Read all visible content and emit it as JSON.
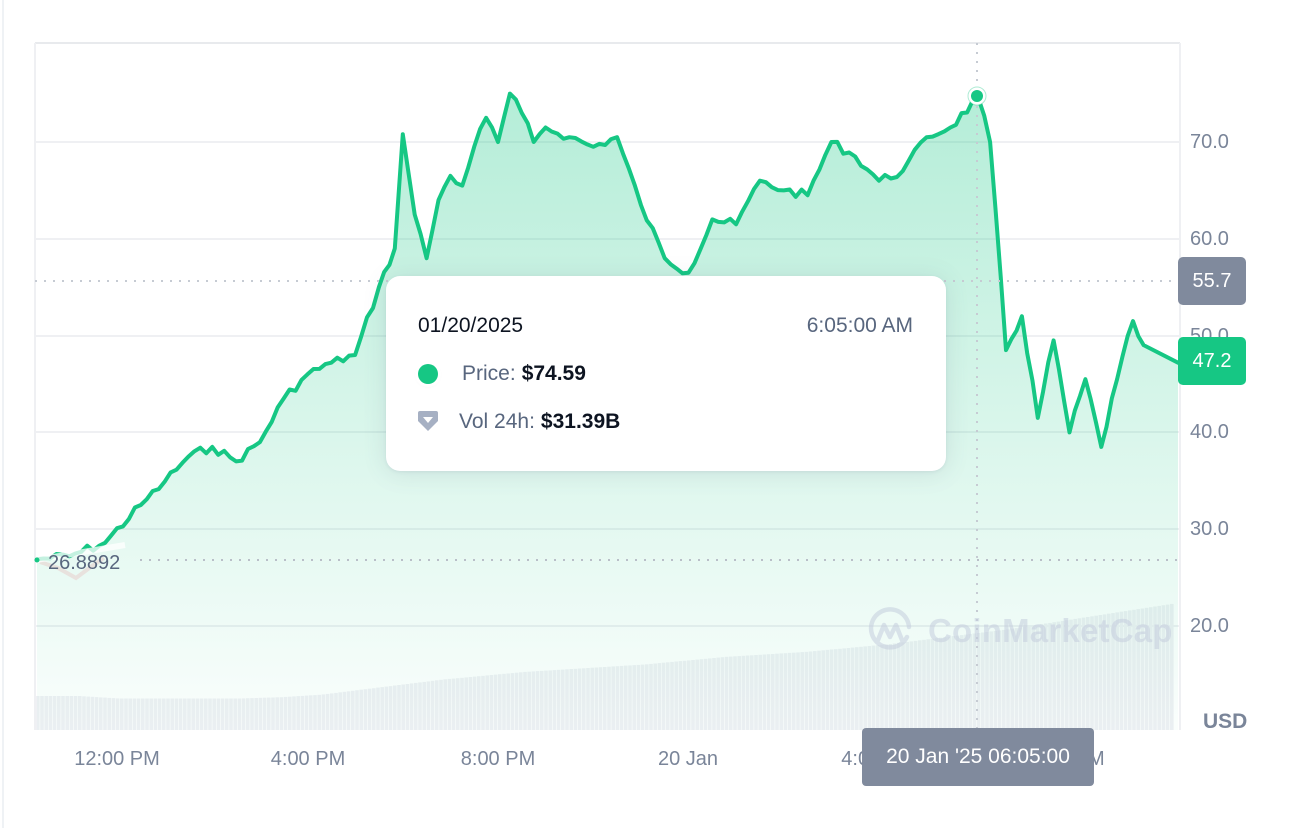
{
  "chart": {
    "watermark": "CoinMarketCap",
    "currency_label": "USD",
    "start_price_label": "26.8892",
    "crosshair_price_badge": "55.7",
    "last_price_badge": "47.2",
    "crosshair_time_badge": "20 Jan '25 06:05:00",
    "y_ticks": [
      "70.0",
      "60.0",
      "50.0",
      "40.0",
      "30.0",
      "20.0"
    ],
    "x_ticks": [
      "12:00 PM",
      "4:00 PM",
      "8:00 PM",
      "20 Jan",
      "4:00 AM",
      "8:00 AM"
    ],
    "colors": {
      "line": "#16c784",
      "below_start": "#ea3943",
      "badge_neutral": "#808a9d",
      "axis_text": "#7a8599",
      "volume": "#eff0f4"
    }
  },
  "tooltip": {
    "date": "01/20/2025",
    "time": "6:05:00 AM",
    "price_label": "Price:",
    "price_value": "$74.59",
    "volume_label": "Vol 24h:",
    "volume_value": "$31.39B"
  },
  "chart_data": {
    "type": "area",
    "title": "",
    "xlabel": "",
    "ylabel": "USD",
    "ylim": [
      10,
      78
    ],
    "grid": true,
    "legend": "none",
    "x_tick_labels": [
      "12:00 PM",
      "4:00 PM",
      "8:00 PM",
      "20 Jan",
      "4:00 AM",
      "8:00 AM"
    ],
    "y_tick_labels": [
      "20.0",
      "30.0",
      "40.0",
      "50.0",
      "60.0",
      "70.0"
    ],
    "annotations": {
      "start_price": 26.8892,
      "last_price": 47.2,
      "crosshair_price": 55.7,
      "crosshair_time": "20 Jan '25 06:05:00",
      "hovered_point": {
        "date": "01/20/2025",
        "time": "6:05:00 AM",
        "price": 74.59,
        "volume_24h": "$31.39B"
      }
    },
    "series": [
      {
        "name": "Price",
        "x": [
          "10:15 AM",
          "11:00 AM",
          "11:45 AM",
          "12:30 PM",
          "1:00 PM",
          "1:30 PM",
          "2:00 PM",
          "2:30 PM",
          "3:00 PM",
          "3:30 PM",
          "4:00 PM",
          "4:30 PM",
          "5:00 PM",
          "5:30 PM",
          "5:50 PM",
          "6:00 PM",
          "6:15 PM",
          "6:30 PM",
          "6:45 PM",
          "7:00 PM",
          "7:15 PM",
          "7:30 PM",
          "7:45 PM",
          "8:00 PM",
          "8:15 PM",
          "8:30 PM",
          "8:45 PM",
          "9:00 PM",
          "9:30 PM",
          "10:00 PM",
          "10:30 PM",
          "11:00 PM",
          "11:30 PM",
          "12:00 AM",
          "12:30 AM",
          "1:00 AM",
          "1:30 AM",
          "2:00 AM",
          "2:30 AM",
          "3:00 AM",
          "3:30 AM",
          "4:00 AM",
          "4:30 AM",
          "5:00 AM",
          "5:30 AM",
          "6:05 AM",
          "6:20 AM",
          "6:40 AM",
          "7:00 AM",
          "7:20 AM",
          "7:40 AM",
          "8:00 AM",
          "8:20 AM",
          "8:40 AM",
          "9:00 AM",
          "9:20 AM",
          "9:40 AM"
        ],
        "values": [
          26.9,
          27.2,
          28.6,
          32.5,
          34.9,
          37.5,
          38.5,
          37.0,
          39.0,
          43.5,
          46.0,
          47.2,
          48.0,
          55.0,
          59.0,
          70.8,
          62.5,
          58.0,
          64.0,
          66.5,
          65.5,
          69.5,
          72.5,
          70.0,
          75.0,
          73.0,
          70.0,
          71.5,
          70.5,
          69.5,
          70.5,
          63.5,
          58.0,
          56.5,
          62.0,
          61.5,
          66.0,
          65.0,
          64.5,
          70.0,
          68.5,
          66.0,
          67.0,
          70.5,
          71.5,
          74.59,
          70.0,
          48.5,
          52.0,
          41.5,
          49.5,
          40.0,
          45.5,
          38.5,
          45.5,
          51.5,
          47.2
        ]
      },
      {
        "name": "Vol 24h",
        "note": "relative bar heights (background volume bars), rising from ~25% to ~100% of panel",
        "values": [
          0.27,
          0.27,
          0.25,
          0.25,
          0.25,
          0.25,
          0.26,
          0.28,
          0.32,
          0.36,
          0.4,
          0.43,
          0.46,
          0.48,
          0.5,
          0.52,
          0.55,
          0.58,
          0.6,
          0.62,
          0.65,
          0.68,
          0.72,
          0.76,
          0.8,
          0.85,
          0.9,
          0.95,
          1.0
        ]
      }
    ]
  }
}
